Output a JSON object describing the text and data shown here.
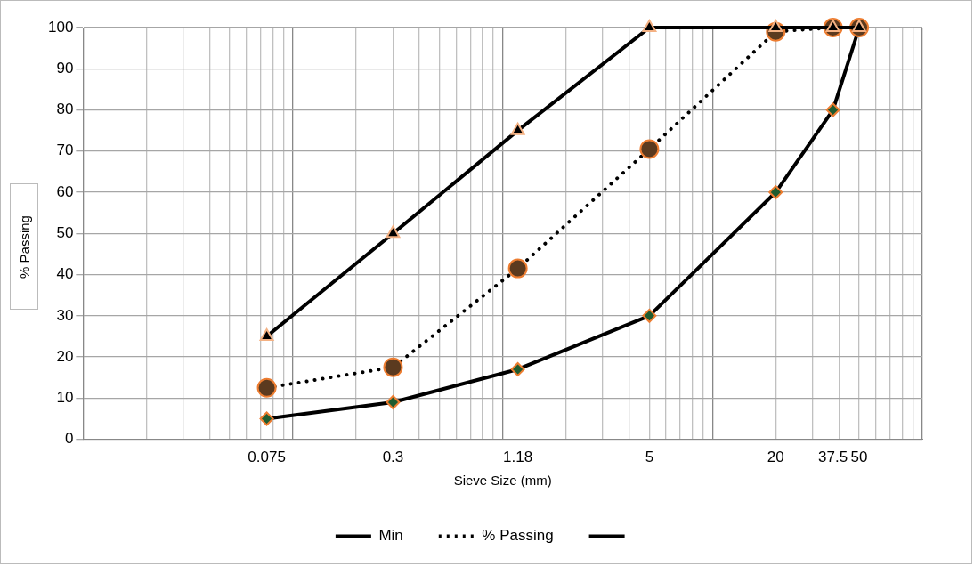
{
  "chart_data": {
    "type": "line",
    "xlabel": "Sieve Size (mm)",
    "ylabel": "% Passing",
    "log": "x",
    "x": [
      0.075,
      0.3,
      1.18,
      5,
      20,
      37.5,
      50
    ],
    "xlim": [
      0.01,
      100
    ],
    "xticks": [
      {
        "value": 0.075,
        "label": "0.075"
      },
      {
        "value": 0.3,
        "label": "0.3"
      },
      {
        "value": 1.18,
        "label": "1.18"
      },
      {
        "value": 5,
        "label": "5"
      },
      {
        "value": 20,
        "label": "20"
      },
      {
        "value": 37.5,
        "label": "37.5"
      },
      {
        "value": 50,
        "label": "50"
      }
    ],
    "ylim": [
      0,
      100
    ],
    "yticks": [
      0,
      10,
      20,
      30,
      40,
      50,
      60,
      70,
      80,
      90,
      100
    ],
    "grid": true,
    "legend": "bottom",
    "series": [
      {
        "name": "Min",
        "color": "#1f5c30",
        "marker": "diamond",
        "line_style": "solid",
        "values": [
          5,
          9,
          17,
          30,
          60,
          80,
          100
        ]
      },
      {
        "name": "% Passing",
        "color": "#5b3a1f",
        "marker": "circle",
        "line_style": "dotted",
        "values": [
          12.5,
          17.5,
          41.5,
          70.5,
          99,
          100,
          100
        ]
      },
      {
        "color": "#000000",
        "marker": "triangle",
        "line_style": "solid",
        "values": [
          25,
          50,
          75,
          100,
          100,
          100,
          100
        ]
      }
    ]
  }
}
